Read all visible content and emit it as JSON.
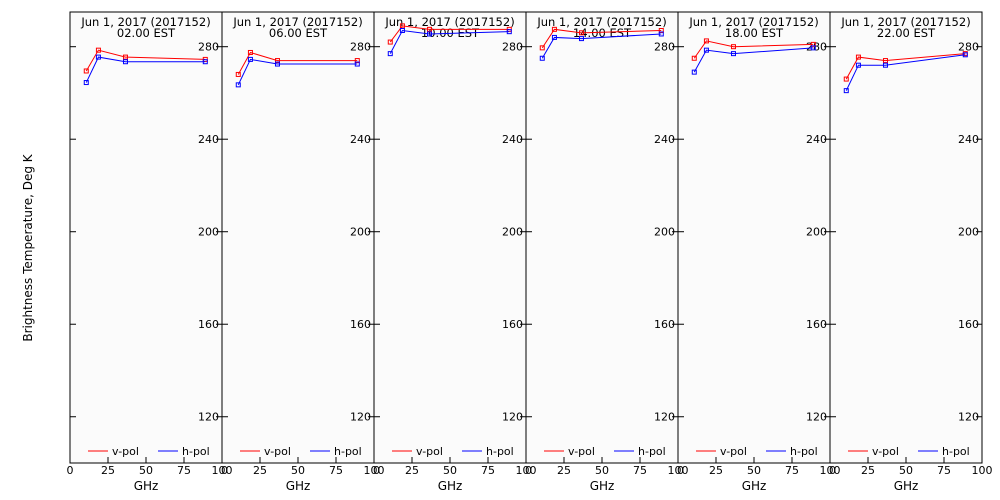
{
  "chart_data": {
    "type": "line",
    "ylabel": "Brightness Temperature, Deg K",
    "xlabel": "GHz",
    "xlim": [
      0,
      100
    ],
    "ylim": [
      100,
      295
    ],
    "yticks": [
      120,
      160,
      200,
      240,
      280
    ],
    "xticks": [
      0,
      25,
      50,
      75,
      100
    ],
    "legend_position": "bottom",
    "grid": false,
    "colors": {
      "v-pol": "#ff0000",
      "h-pol": "#0000ff"
    },
    "x": [
      10.7,
      18.7,
      36.5,
      89.0
    ],
    "panels": [
      {
        "date_label": "Jun  1, 2017 (2017152)",
        "time_label": "02.00 EST",
        "series": [
          {
            "name": "v-pol",
            "values": [
              269.5,
              278.5,
              275.5,
              274.5
            ]
          },
          {
            "name": "h-pol",
            "values": [
              264.5,
              275.5,
              273.5,
              273.5
            ]
          }
        ]
      },
      {
        "date_label": "Jun  1, 2017 (2017152)",
        "time_label": "06.00 EST",
        "series": [
          {
            "name": "v-pol",
            "values": [
              268.0,
              277.5,
              274.0,
              274.0
            ]
          },
          {
            "name": "h-pol",
            "values": [
              263.5,
              274.5,
              272.5,
              272.5
            ]
          }
        ]
      },
      {
        "date_label": "Jun  1, 2017 (2017152)",
        "time_label": "10.00 EST",
        "series": [
          {
            "name": "v-pol",
            "values": [
              282.0,
              289.0,
              287.5,
              287.5
            ]
          },
          {
            "name": "h-pol",
            "values": [
              277.0,
              287.0,
              285.5,
              286.5
            ]
          }
        ]
      },
      {
        "date_label": "Jun  1, 2017 (2017152)",
        "time_label": "14.00 EST",
        "series": [
          {
            "name": "v-pol",
            "values": [
              279.5,
              287.5,
              286.0,
              287.0
            ]
          },
          {
            "name": "h-pol",
            "values": [
              275.0,
              284.0,
              283.5,
              285.5
            ]
          }
        ]
      },
      {
        "date_label": "Jun  1, 2017 (2017152)",
        "time_label": "18.00 EST",
        "series": [
          {
            "name": "v-pol",
            "values": [
              275.0,
              282.5,
              280.0,
              281.0
            ]
          },
          {
            "name": "h-pol",
            "values": [
              269.0,
              278.5,
              277.0,
              279.5
            ]
          }
        ]
      },
      {
        "date_label": "Jun  1, 2017 (2017152)",
        "time_label": "22.00 EST",
        "series": [
          {
            "name": "v-pol",
            "values": [
              266.0,
              275.5,
              274.0,
              277.0
            ]
          },
          {
            "name": "h-pol",
            "values": [
              261.0,
              272.0,
              272.0,
              276.5
            ]
          }
        ]
      }
    ]
  }
}
